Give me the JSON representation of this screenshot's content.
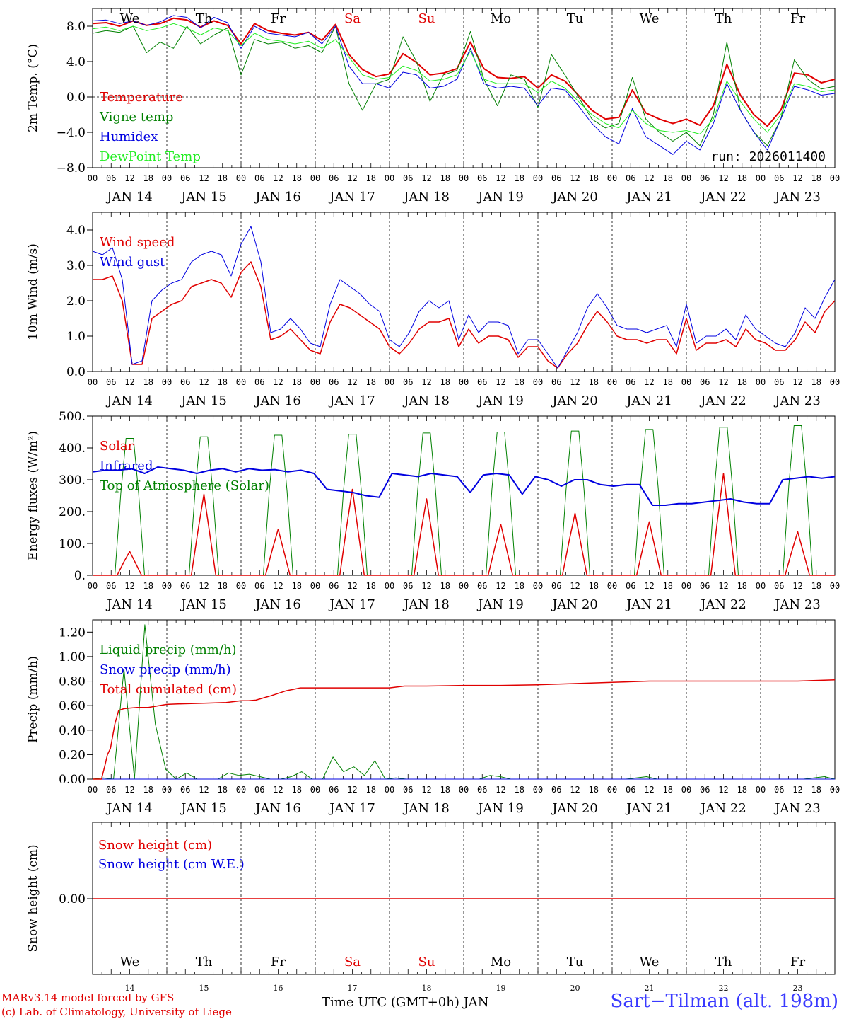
{
  "days": [
    "JAN 14",
    "JAN 15",
    "JAN 16",
    "JAN 17",
    "JAN 18",
    "JAN 19",
    "JAN 20",
    "JAN 21",
    "JAN 22",
    "JAN 23"
  ],
  "weekdays": [
    "We",
    "Th",
    "Fr",
    "Sa",
    "Su",
    "Mo",
    "Tu",
    "We",
    "Th",
    "Fr"
  ],
  "weekday_colors": [
    "#000000",
    "#000000",
    "#000000",
    "#e00000",
    "#e00000",
    "#000000",
    "#000000",
    "#000000",
    "#000000",
    "#000000"
  ],
  "day_numbers": [
    "14",
    "15",
    "16",
    "17",
    "18",
    "19",
    "20",
    "21",
    "22",
    "23"
  ],
  "hour_ticks": [
    "00",
    "06",
    "12",
    "18"
  ],
  "last_hour_tick": "00",
  "footer": {
    "credit_line1": "MARv3.14 model forced by GFS",
    "credit_line2": "(c) Lab. of Climatology, University of Liege",
    "xlabel": "Time UTC (GMT+0h) JAN",
    "station": "Sart−Tilman (alt. 198m)"
  },
  "chart_data": [
    {
      "type": "line",
      "ylabel": "2m Temp. (°C)",
      "ylim": [
        -8,
        10
      ],
      "yticks": [
        "8.0",
        "4.0",
        "0.0",
        "−4.0",
        "−8.0"
      ],
      "ytick_values": [
        8,
        4,
        0,
        -4,
        -8
      ],
      "zero_line": true,
      "annotation": "run: 2026011400",
      "series": [
        {
          "name": "Temperature",
          "color": "#e00000",
          "width": 2,
          "values": [
            8.3,
            8.4,
            8.0,
            8.6,
            8.1,
            8.3,
            8.9,
            8.7,
            7.9,
            8.6,
            8.1,
            6.0,
            8.3,
            7.5,
            7.2,
            7.0,
            7.3,
            6.4,
            8.2,
            4.8,
            3.1,
            2.3,
            2.6,
            4.9,
            3.9,
            2.5,
            2.7,
            3.2,
            6.2,
            3.2,
            2.2,
            2.1,
            2.3,
            1.0,
            2.5,
            1.8,
            0.2,
            -1.5,
            -2.5,
            -2.3,
            0.8,
            -1.8,
            -2.5,
            -3.0,
            -2.5,
            -3.2,
            -1.0,
            3.7,
            0.2,
            -2.0,
            -3.3,
            -1.5,
            2.7,
            2.5,
            1.6,
            2.0
          ]
        },
        {
          "name": "Vigne temp",
          "color": "#008000",
          "width": 1,
          "values": [
            7.2,
            7.5,
            7.3,
            8.0,
            5.0,
            6.2,
            5.5,
            8.0,
            6.0,
            7.0,
            7.8,
            2.5,
            6.5,
            6.0,
            6.2,
            5.5,
            5.8,
            5.0,
            8.0,
            1.5,
            -1.5,
            1.5,
            2.0,
            6.8,
            4.0,
            -0.5,
            2.5,
            3.0,
            7.4,
            2.0,
            -1.0,
            2.5,
            2.0,
            -1.2,
            4.8,
            2.5,
            0.0,
            -2.5,
            -3.5,
            -3.0,
            2.2,
            -2.5,
            -4.0,
            -5.0,
            -4.0,
            -5.5,
            -2.0,
            6.2,
            -1.5,
            -4.0,
            -5.5,
            -2.5,
            4.2,
            2.0,
            0.9,
            1.2
          ]
        },
        {
          "name": "Humidex",
          "color": "#0000e0",
          "width": 1,
          "values": [
            8.6,
            8.7,
            8.3,
            8.6,
            8.1,
            8.5,
            9.2,
            9.0,
            7.8,
            9.0,
            8.4,
            5.5,
            8.0,
            7.2,
            7.0,
            6.8,
            7.3,
            6.0,
            8.0,
            3.5,
            1.5,
            1.5,
            1.0,
            2.8,
            2.5,
            1.0,
            1.2,
            2.0,
            5.5,
            1.5,
            1.0,
            1.2,
            1.0,
            -1.0,
            1.0,
            0.8,
            -1.0,
            -3.0,
            -4.5,
            -5.3,
            -1.3,
            -4.5,
            -5.5,
            -6.5,
            -5.0,
            -6.0,
            -3.0,
            1.5,
            -1.5,
            -4.0,
            -6.0,
            -2.5,
            1.2,
            0.8,
            0.2,
            0.4
          ]
        },
        {
          "name": "DewPoint Temp",
          "color": "#22ee22",
          "width": 1,
          "values": [
            7.7,
            7.9,
            7.5,
            8.0,
            7.5,
            7.8,
            8.3,
            7.8,
            7.0,
            7.8,
            7.5,
            5.8,
            7.2,
            6.5,
            6.3,
            6.0,
            6.3,
            5.5,
            6.5,
            4.5,
            2.5,
            2.0,
            2.2,
            3.5,
            3.0,
            1.8,
            2.0,
            2.5,
            5.2,
            2.0,
            1.5,
            1.5,
            1.5,
            0.5,
            1.8,
            1.0,
            -0.5,
            -2.0,
            -3.0,
            -3.5,
            -1.5,
            -3.0,
            -3.8,
            -4.0,
            -3.8,
            -4.2,
            -2.5,
            1.8,
            -0.5,
            -2.5,
            -4.0,
            -2.0,
            1.5,
            1.2,
            0.6,
            0.8
          ]
        }
      ]
    },
    {
      "type": "line",
      "ylabel": "10m Wind (m/s)",
      "ylim": [
        0,
        4.5
      ],
      "yticks": [
        "4.0",
        "3.0",
        "2.0",
        "1.0",
        "0.0"
      ],
      "ytick_values": [
        4,
        3,
        2,
        1,
        0
      ],
      "zero_line": false,
      "series": [
        {
          "name": "Wind speed",
          "color": "#e00000",
          "width": 1.5,
          "values": [
            2.6,
            2.6,
            2.7,
            2.0,
            0.2,
            0.2,
            1.5,
            1.7,
            1.9,
            2.0,
            2.4,
            2.5,
            2.6,
            2.5,
            2.1,
            2.8,
            3.1,
            2.4,
            0.9,
            1.0,
            1.2,
            0.9,
            0.6,
            0.5,
            1.4,
            1.9,
            1.8,
            1.6,
            1.4,
            1.2,
            0.7,
            0.5,
            0.8,
            1.2,
            1.4,
            1.4,
            1.5,
            0.7,
            1.2,
            0.8,
            1.0,
            1.0,
            0.9,
            0.4,
            0.7,
            0.7,
            0.3,
            0.1,
            0.5,
            0.8,
            1.3,
            1.7,
            1.4,
            1.0,
            0.9,
            0.9,
            0.8,
            0.9,
            0.9,
            0.5,
            1.5,
            0.6,
            0.8,
            0.8,
            0.9,
            0.7,
            1.2,
            0.9,
            0.8,
            0.6,
            0.6,
            0.9,
            1.4,
            1.1,
            1.7,
            2.0
          ]
        },
        {
          "name": "Wind gust",
          "color": "#0000e0",
          "width": 1,
          "values": [
            3.4,
            3.3,
            3.5,
            2.6,
            0.2,
            0.3,
            2.0,
            2.3,
            2.5,
            2.6,
            3.1,
            3.3,
            3.4,
            3.3,
            2.7,
            3.6,
            4.1,
            3.1,
            1.1,
            1.2,
            1.5,
            1.2,
            0.8,
            0.7,
            1.9,
            2.6,
            2.4,
            2.2,
            1.9,
            1.7,
            0.9,
            0.7,
            1.1,
            1.7,
            2.0,
            1.8,
            2.0,
            0.9,
            1.6,
            1.1,
            1.4,
            1.4,
            1.3,
            0.5,
            0.9,
            0.9,
            0.5,
            0.1,
            0.6,
            1.1,
            1.8,
            2.2,
            1.8,
            1.3,
            1.2,
            1.2,
            1.1,
            1.2,
            1.3,
            0.7,
            1.9,
            0.8,
            1.0,
            1.0,
            1.2,
            0.9,
            1.6,
            1.2,
            1.0,
            0.8,
            0.7,
            1.1,
            1.8,
            1.5,
            2.1,
            2.6
          ]
        }
      ]
    },
    {
      "type": "line",
      "ylabel": "Energy fluxes (W/m²)",
      "ylim": [
        0,
        500
      ],
      "yticks": [
        "500.",
        "400.",
        "300.",
        "200.",
        "100.",
        "0."
      ],
      "ytick_values": [
        500,
        400,
        300,
        200,
        100,
        0
      ],
      "zero_line": false,
      "toa_peaks": [
        430,
        435,
        440,
        443,
        447,
        450,
        453,
        458,
        465,
        470
      ],
      "solar_peaks": [
        75,
        255,
        145,
        270,
        240,
        160,
        195,
        168,
        320,
        137
      ],
      "series": [
        {
          "name": "Solar",
          "color": "#e00000",
          "width": 1.5
        },
        {
          "name": "Infrared",
          "color": "#0000e0",
          "width": 2,
          "values": [
            325,
            330,
            330,
            335,
            320,
            340,
            335,
            330,
            320,
            330,
            335,
            325,
            335,
            330,
            332,
            325,
            330,
            320,
            270,
            265,
            260,
            250,
            245,
            320,
            315,
            310,
            320,
            315,
            310,
            260,
            315,
            320,
            315,
            255,
            310,
            300,
            280,
            300,
            300,
            285,
            280,
            285,
            285,
            220,
            220,
            225,
            225,
            230,
            235,
            240,
            230,
            225,
            225,
            300,
            305,
            310,
            305,
            310
          ]
        },
        {
          "name": "Top of Atmosphere (Solar)",
          "color": "#008000",
          "width": 1
        }
      ]
    },
    {
      "type": "line",
      "ylabel": "Precip (mm/h)",
      "ylim": [
        0,
        1.3
      ],
      "yticks": [
        "1.20",
        "1.00",
        "0.80",
        "0.60",
        "0.40",
        "0.20",
        "0.00"
      ],
      "ytick_values": [
        1.2,
        1.0,
        0.8,
        0.6,
        0.4,
        0.2,
        0.0
      ],
      "zero_line": false,
      "series": [
        {
          "name": "Liquid precip (mm/h)",
          "color": "#008000",
          "width": 1,
          "values": [
            0.0,
            0.01,
            0.0,
            0.9,
            0.0,
            1.26,
            0.45,
            0.08,
            0.0,
            0.05,
            0.0,
            0.0,
            0.0,
            0.05,
            0.03,
            0.04,
            0.02,
            0.0,
            0.0,
            0.02,
            0.06,
            0.0,
            0.0,
            0.18,
            0.06,
            0.1,
            0.03,
            0.15,
            0.0,
            0.01,
            0.0,
            0.0,
            0.0,
            0.0,
            0.0,
            0.0,
            0.0,
            0.0,
            0.03,
            0.02,
            0.0,
            0.0,
            0.0,
            0.0,
            0.0,
            0.0,
            0.0,
            0.0,
            0.0,
            0.0,
            0.0,
            0.0,
            0.01,
            0.02,
            0.0,
            0.0,
            0.0,
            0.0,
            0.0,
            0.0,
            0.0,
            0.0,
            0.0,
            0.0,
            0.0,
            0.0,
            0.0,
            0.0,
            0.0,
            0.01,
            0.02,
            0.0
          ]
        },
        {
          "name": "Snow precip (mm/h)",
          "color": "#0000e0",
          "width": 1,
          "values": [
            0,
            0,
            0,
            0,
            0,
            0,
            0,
            0,
            0,
            0,
            0,
            0,
            0,
            0,
            0,
            0,
            0,
            0,
            0,
            0,
            0,
            0,
            0,
            0,
            0,
            0,
            0,
            0,
            0,
            0,
            0,
            0,
            0,
            0,
            0,
            0,
            0,
            0,
            0,
            0,
            0,
            0,
            0,
            0,
            0,
            0,
            0,
            0,
            0,
            0,
            0,
            0,
            0,
            0,
            0,
            0,
            0,
            0,
            0,
            0,
            0,
            0,
            0,
            0,
            0,
            0,
            0,
            0,
            0,
            0,
            0,
            0
          ]
        },
        {
          "name": "Total cumulated (cm)",
          "color": "#e00000",
          "width": 1.5,
          "x": [
            0,
            0.12,
            0.17,
            0.2,
            0.24,
            0.3,
            0.35,
            0.42,
            0.5,
            0.6,
            0.75,
            1.0,
            1.2,
            1.5,
            1.8,
            2.0,
            2.1,
            2.2,
            2.4,
            2.6,
            2.8,
            3.0,
            3.5,
            4.0,
            4.2,
            4.5,
            5.0,
            5.5,
            6.0,
            6.5,
            7.0,
            7.5,
            8.0,
            8.5,
            9.0,
            9.5,
            10.0
          ],
          "values": [
            0.0,
            0.0,
            0.12,
            0.2,
            0.25,
            0.45,
            0.56,
            0.575,
            0.58,
            0.585,
            0.585,
            0.61,
            0.615,
            0.62,
            0.625,
            0.64,
            0.64,
            0.645,
            0.68,
            0.72,
            0.745,
            0.745,
            0.745,
            0.745,
            0.76,
            0.76,
            0.765,
            0.765,
            0.77,
            0.78,
            0.79,
            0.8,
            0.8,
            0.8,
            0.8,
            0.8,
            0.81
          ]
        }
      ]
    },
    {
      "type": "line",
      "ylabel": "Snow height (cm)",
      "yticks": [
        "0.00"
      ],
      "zero_line": false,
      "series": [
        {
          "name": "Snow height (cm)",
          "color": "#e00000",
          "width": 1.5,
          "values": [
            0,
            0
          ]
        },
        {
          "name": "Snow height (cm W.E.)",
          "color": "#0000e0",
          "width": 1,
          "values": [
            0,
            0
          ]
        }
      ]
    }
  ]
}
